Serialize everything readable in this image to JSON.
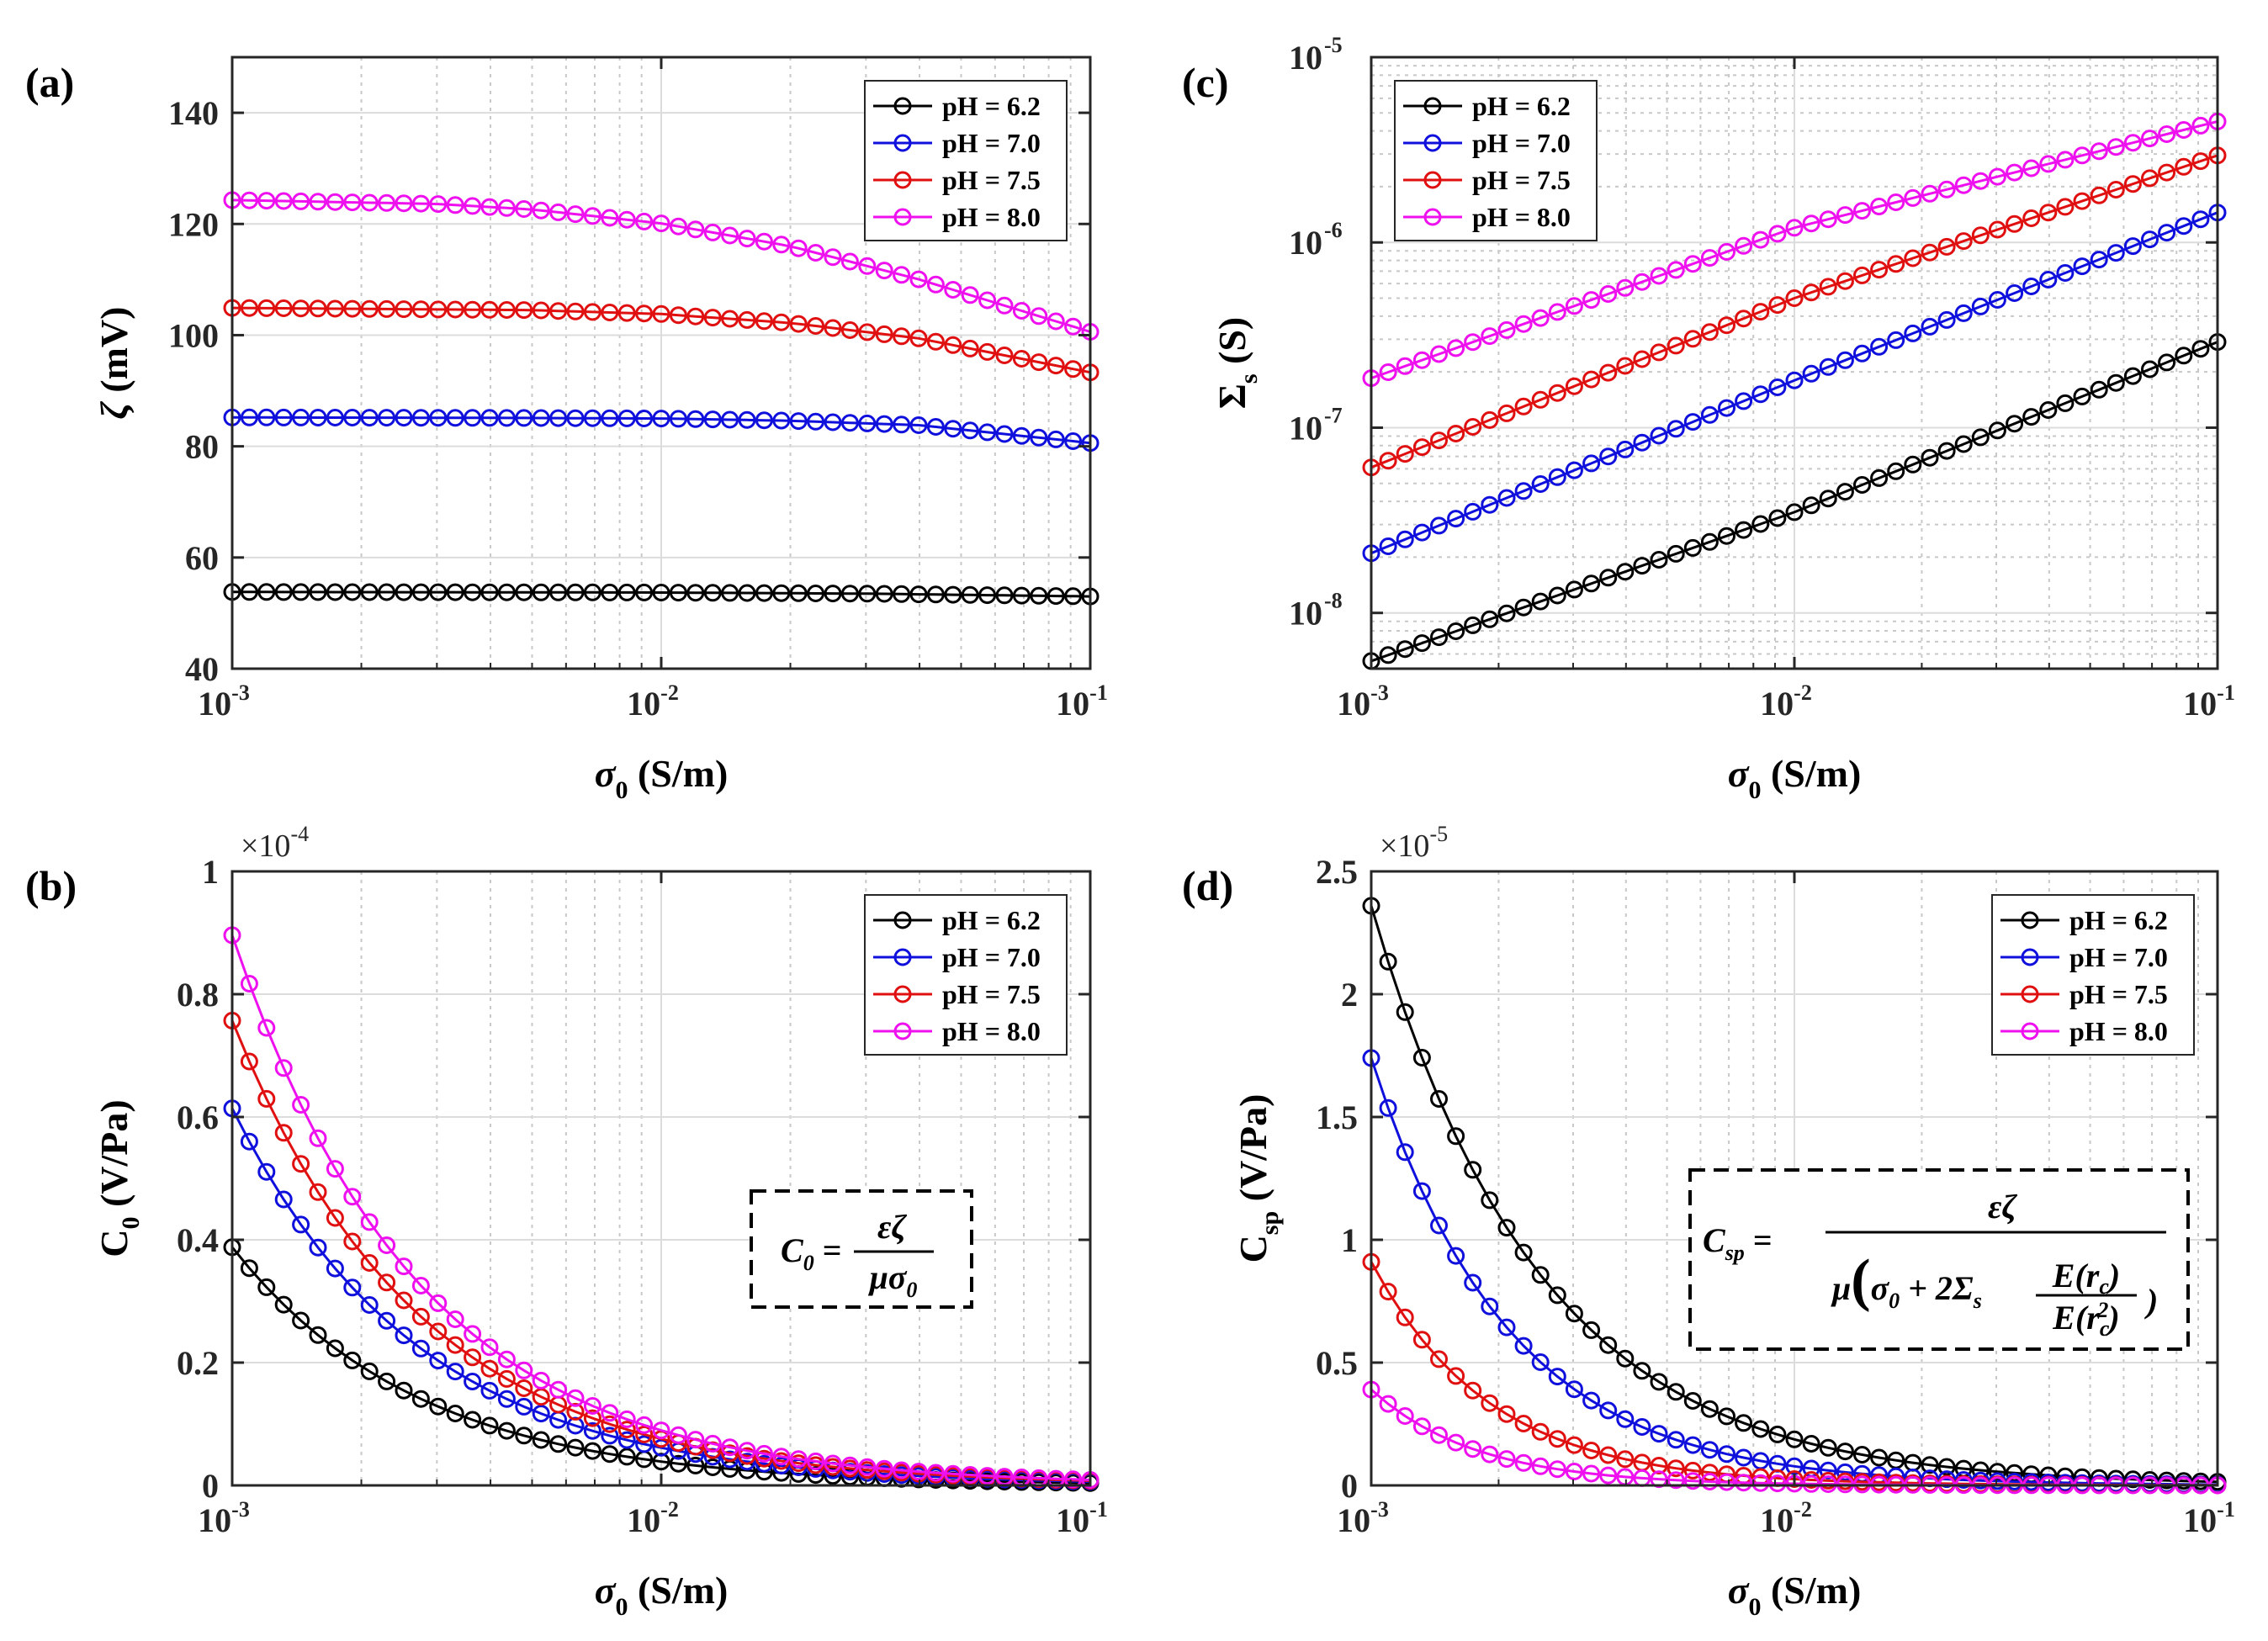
{
  "figure": {
    "colors": {
      "pH = 6.2": "#000000",
      "pH = 7.0": "#1010dd",
      "pH = 7.5": "#e01010",
      "pH = 8.0": "#ee10ee"
    }
  },
  "chart_data": [
    {
      "panel": "(a)",
      "type": "line",
      "xscale": "log",
      "yscale": "linear",
      "xlim": [
        0.001,
        0.1
      ],
      "ylim": [
        40,
        150
      ],
      "xticks": [
        0.001,
        0.01,
        0.1
      ],
      "xtick_labels": [
        {
          "base": "10",
          "exp": "-3"
        },
        {
          "base": "10",
          "exp": "-2"
        },
        {
          "base": "10",
          "exp": "-1"
        }
      ],
      "yticks": [
        40,
        60,
        80,
        100,
        120,
        140
      ],
      "ytick_labels": [
        "40",
        "60",
        "80",
        "100",
        "120",
        "140"
      ],
      "xlabel": {
        "sym": "σ",
        "sub": "0",
        "unit": " (S/m)"
      },
      "ylabel": {
        "sym": "ζ",
        "sub": "",
        "unit": " (mV)"
      },
      "legend_position": "top-right",
      "multiplier": null,
      "series": [
        {
          "name": "pH = 6.2",
          "x": [
            0.001,
            0.01,
            0.03,
            0.1
          ],
          "values": [
            53.8,
            53.7,
            53.5,
            53.0
          ]
        },
        {
          "name": "pH = 7.0",
          "x": [
            0.001,
            0.005,
            0.01,
            0.02,
            0.04,
            0.1
          ],
          "values": [
            85.2,
            85.1,
            85.0,
            84.6,
            83.8,
            80.6
          ]
        },
        {
          "name": "pH = 7.5",
          "x": [
            0.001,
            0.005,
            0.01,
            0.02,
            0.04,
            0.1
          ],
          "values": [
            104.9,
            104.5,
            103.8,
            102.2,
            99.4,
            93.3
          ]
        },
        {
          "name": "pH = 8.0",
          "x": [
            0.001,
            0.003,
            0.005,
            0.01,
            0.02,
            0.04,
            0.1
          ],
          "values": [
            124.3,
            123.6,
            122.6,
            120.1,
            116.0,
            110.0,
            100.6
          ]
        }
      ]
    },
    {
      "panel": "(c)",
      "type": "line",
      "xscale": "log",
      "yscale": "log",
      "xlim": [
        0.001,
        0.1
      ],
      "ylim": [
        5e-09,
        1e-05
      ],
      "xticks": [
        0.001,
        0.01,
        0.1
      ],
      "xtick_labels": [
        {
          "base": "10",
          "exp": "-3"
        },
        {
          "base": "10",
          "exp": "-2"
        },
        {
          "base": "10",
          "exp": "-1"
        }
      ],
      "yticks": [
        1e-08,
        1e-07,
        1e-06,
        1e-05
      ],
      "ytick_labels": [
        {
          "base": "10",
          "exp": "-8"
        },
        {
          "base": "10",
          "exp": "-7"
        },
        {
          "base": "10",
          "exp": "-6"
        },
        {
          "base": "10",
          "exp": "-5"
        }
      ],
      "xlabel": {
        "sym": "σ",
        "sub": "0",
        "unit": " (S/m)"
      },
      "ylabel": {
        "sym": "Σ",
        "sub": "s",
        "unit": " (S)"
      },
      "legend_position": "top-left",
      "multiplier": null,
      "series": [
        {
          "name": "pH = 6.2",
          "x": [
            0.001,
            0.01,
            0.1
          ],
          "values": [
            5.5e-09,
            3.5e-08,
            2.9e-07
          ]
        },
        {
          "name": "pH = 7.0",
          "x": [
            0.001,
            0.01,
            0.1
          ],
          "values": [
            2.1e-08,
            1.8e-07,
            1.45e-06
          ]
        },
        {
          "name": "pH = 7.5",
          "x": [
            0.001,
            0.01,
            0.1
          ],
          "values": [
            6.1e-08,
            5e-07,
            2.95e-06
          ]
        },
        {
          "name": "pH = 8.0",
          "x": [
            0.001,
            0.01,
            0.1
          ],
          "values": [
            1.85e-07,
            1.2e-06,
            4.5e-06
          ]
        }
      ]
    },
    {
      "panel": "(b)",
      "type": "line",
      "xscale": "log",
      "yscale": "linear",
      "xlim": [
        0.001,
        0.1
      ],
      "ylim": [
        0,
        1
      ],
      "xticks": [
        0.001,
        0.01,
        0.1
      ],
      "xtick_labels": [
        {
          "base": "10",
          "exp": "-3"
        },
        {
          "base": "10",
          "exp": "-2"
        },
        {
          "base": "10",
          "exp": "-1"
        }
      ],
      "yticks": [
        0,
        0.2,
        0.4,
        0.6,
        0.8,
        1
      ],
      "ytick_labels": [
        "0",
        "0.2",
        "0.4",
        "0.6",
        "0.8",
        "1"
      ],
      "xlabel": {
        "sym": "σ",
        "sub": "0",
        "unit": " (S/m)"
      },
      "ylabel": {
        "sym": "C",
        "sub": "0",
        "unit": " (V/Pa)"
      },
      "legend_position": "top-right",
      "multiplier": {
        "text": "×10",
        "exp": "-4"
      },
      "formula": "C0 = εζ / (μσ0)",
      "series": [
        {
          "name": "pH = 6.2",
          "scale": 0.388,
          "values_at_min": 0.388
        },
        {
          "name": "pH = 7.0",
          "scale": 0.614,
          "values_at_min": 0.614
        },
        {
          "name": "pH = 7.5",
          "scale": 0.757,
          "values_at_min": 0.757
        },
        {
          "name": "pH = 8.0",
          "scale": 0.896,
          "values_at_min": 0.896
        }
      ]
    },
    {
      "panel": "(d)",
      "type": "line",
      "xscale": "log",
      "yscale": "linear",
      "xlim": [
        0.001,
        0.1
      ],
      "ylim": [
        0,
        2.5
      ],
      "xticks": [
        0.001,
        0.01,
        0.1
      ],
      "xtick_labels": [
        {
          "base": "10",
          "exp": "-3"
        },
        {
          "base": "10",
          "exp": "-2"
        },
        {
          "base": "10",
          "exp": "-1"
        }
      ],
      "yticks": [
        0,
        0.5,
        1,
        1.5,
        2,
        2.5
      ],
      "ytick_labels": [
        "0",
        "0.5",
        "1",
        "1.5",
        "2",
        "2.5"
      ],
      "xlabel": {
        "sym": "σ",
        "sub": "0",
        "unit": " (S/m)"
      },
      "ylabel": {
        "sym": "C",
        "sub": "sp",
        "unit": " (V/Pa)"
      },
      "legend_position": "top-right",
      "multiplier": {
        "text": "×10",
        "exp": "-5"
      },
      "formula": "Csp = εζ / (μ(σ0 + 2Σs E(rc)/E(rc²)))",
      "series": [
        {
          "name": "pH = 6.2",
          "values_at_min": 2.36
        },
        {
          "name": "pH = 7.0",
          "values_at_min": 1.74
        },
        {
          "name": "pH = 7.5",
          "values_at_min": 0.91
        },
        {
          "name": "pH = 8.0",
          "values_at_min": 0.39
        }
      ]
    }
  ],
  "legend": {
    "entries": [
      "pH = 6.2",
      "pH = 7.0",
      "pH = 7.5",
      "pH = 8.0"
    ]
  },
  "panel_labels": {
    "a": "(a)",
    "b": "(b)",
    "c": "(c)",
    "d": "(d)"
  }
}
